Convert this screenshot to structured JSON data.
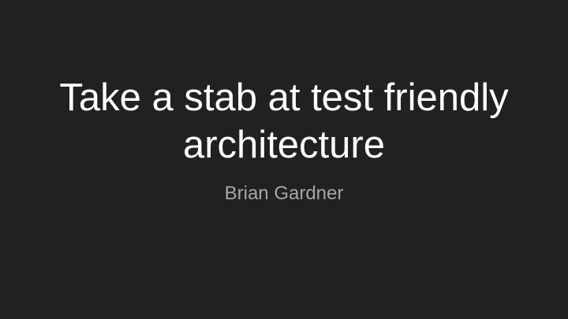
{
  "slide": {
    "title_lines": [
      "Take a stab at test friendly",
      "architecture"
    ],
    "subtitle": "Brian Gardner",
    "colors": {
      "background": "#212121",
      "title": "#ffffff",
      "subtitle": "#a6a6a6"
    }
  }
}
